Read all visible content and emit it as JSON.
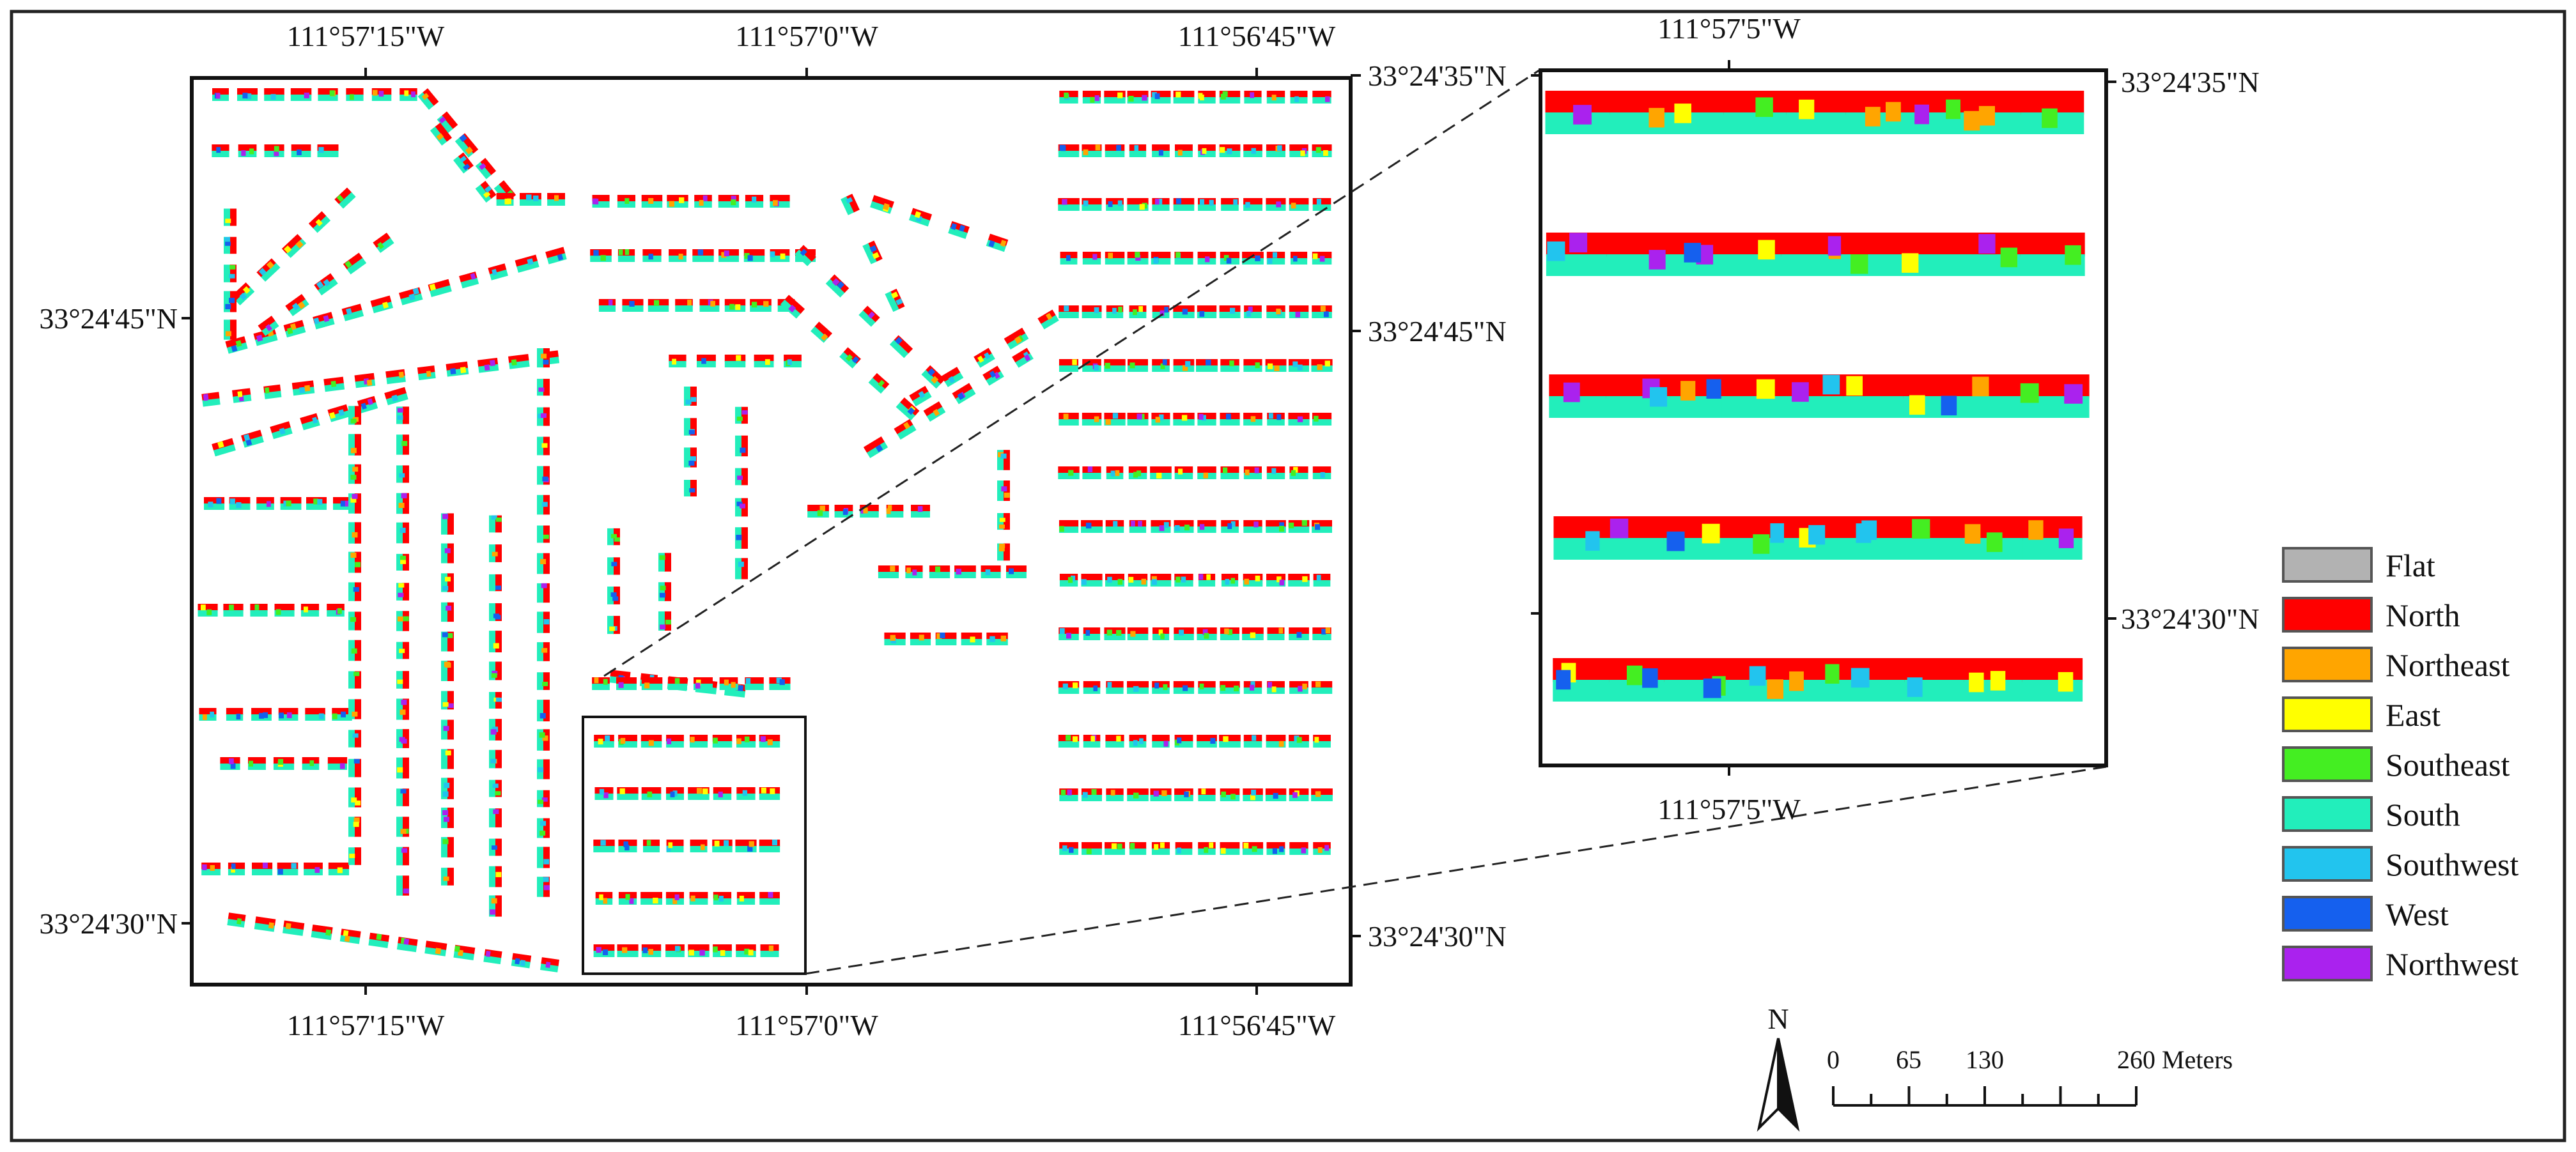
{
  "main_map": {
    "top_lon_labels": [
      "111°57'15\"W",
      "111°57'0\"W",
      "111°56'45\"W"
    ],
    "bottom_lon_labels": [
      "111°57'15\"W",
      "111°57'0\"W",
      "111°56'45\"W"
    ],
    "left_lat_labels": [
      "33°24'45\"N",
      "33°24'30\"N"
    ],
    "right_lat_labels": [
      "33°24'35\"N",
      "33°24'45\"N",
      "33°24'30\"N"
    ]
  },
  "inset_map": {
    "top_lon_label": "111°57'5\"W",
    "bottom_lon_label": "111°57'5\"W",
    "right_lat_labels": [
      "33°24'35\"N",
      "33°24'30\"N"
    ]
  },
  "legend": {
    "items": [
      {
        "label": "Flat",
        "color": "#b2b2b2"
      },
      {
        "label": "North",
        "color": "#ff0000"
      },
      {
        "label": "Northeast",
        "color": "#ffa500"
      },
      {
        "label": "East",
        "color": "#ffff00"
      },
      {
        "label": "Southeast",
        "color": "#44ee22"
      },
      {
        "label": "South",
        "color": "#22eebb"
      },
      {
        "label": "Southwest",
        "color": "#22c4ee"
      },
      {
        "label": "West",
        "color": "#1560ee"
      },
      {
        "label": "Northwest",
        "color": "#aa22ee"
      }
    ]
  },
  "scale_bar": {
    "ticks": [
      "0",
      "65",
      "130",
      "260"
    ],
    "unit": "Meters"
  },
  "north_arrow": {
    "label": "N"
  }
}
